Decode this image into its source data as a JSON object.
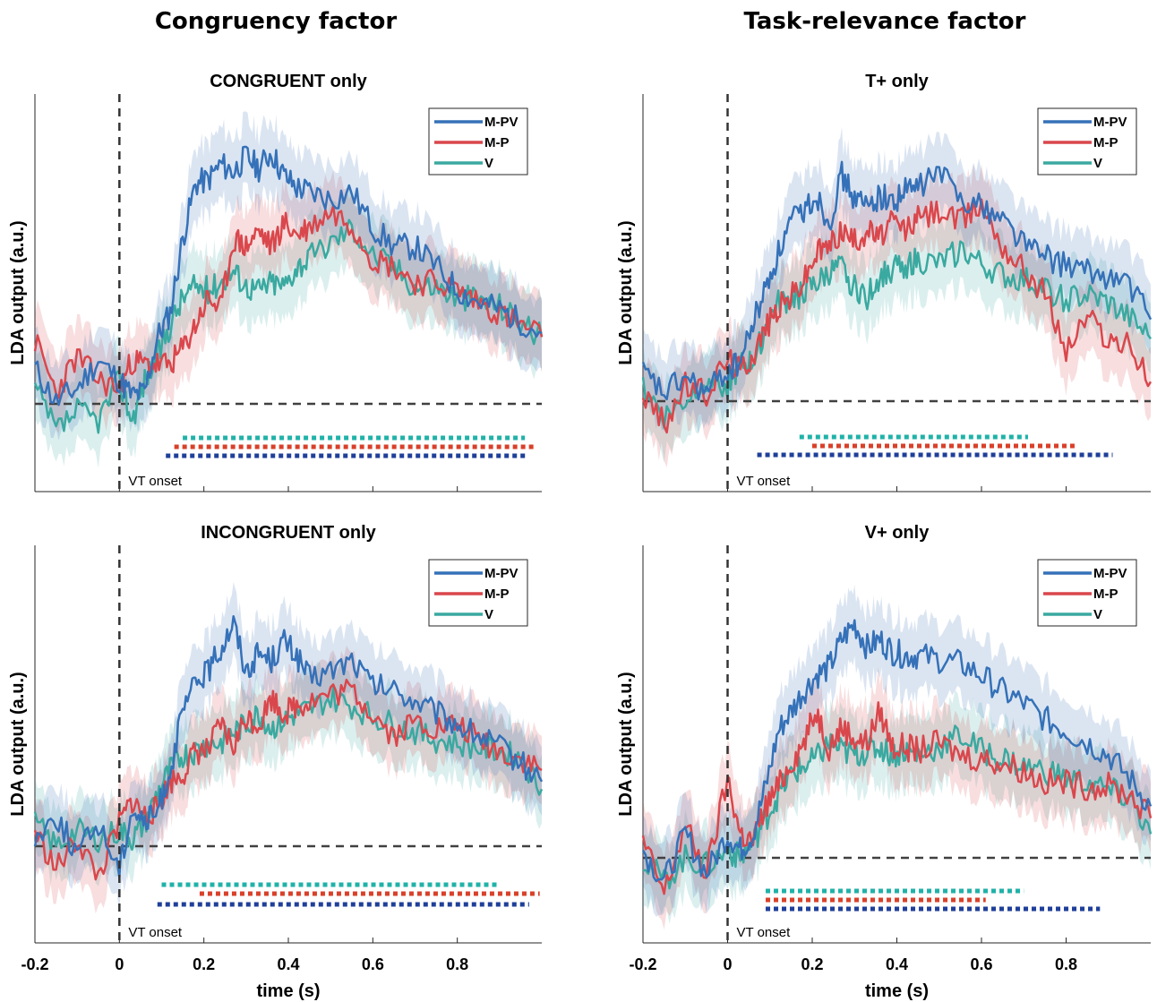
{
  "column_titles": [
    "Congruency factor",
    "Task-relevance factor"
  ],
  "colors": {
    "M-PV": "#3571b8",
    "M-P": "#d9474c",
    "V": "#3aa9a0",
    "sig_V": "#20b2a8",
    "sig_MP": "#d9402a",
    "sig_MPV": "#1f3f99",
    "baseline": "#404040"
  },
  "chart_data": [
    {
      "type": "line",
      "title": "CONGRUENT only",
      "xlabel": "",
      "ylabel": "LDA output (a.u.)",
      "xlim": [
        -0.2,
        1.0
      ],
      "xticks": [
        "-0.2",
        "0",
        "0.2",
        "0.4",
        "0.6",
        "0.8"
      ],
      "onset_label": "VT onset",
      "legend": [
        "M-PV",
        "M-P",
        "V"
      ],
      "legend_position": "top-right",
      "series": [
        {
          "name": "M-PV",
          "x": [
            -0.2,
            -0.15,
            -0.1,
            -0.05,
            0,
            0.03,
            0.06,
            0.09,
            0.12,
            0.15,
            0.18,
            0.21,
            0.24,
            0.27,
            0.3,
            0.33,
            0.36,
            0.39,
            0.42,
            0.45,
            0.5,
            0.55,
            0.6,
            0.65,
            0.7,
            0.75,
            0.8,
            0.85,
            0.9,
            0.95,
            1.0
          ],
          "y": [
            0.45,
            0.02,
            0.2,
            0.55,
            0.3,
            0.1,
            0.15,
            0.85,
            1.15,
            2.1,
            2.8,
            2.85,
            3.05,
            2.95,
            3.15,
            3.0,
            3.2,
            2.9,
            2.75,
            2.7,
            2.6,
            2.7,
            2.25,
            2.0,
            2.0,
            1.75,
            1.45,
            1.3,
            1.2,
            1.05,
            0.9
          ]
        },
        {
          "name": "M-P",
          "x": [
            -0.2,
            -0.15,
            -0.1,
            -0.05,
            0,
            0.03,
            0.06,
            0.09,
            0.12,
            0.15,
            0.18,
            0.21,
            0.24,
            0.27,
            0.3,
            0.33,
            0.36,
            0.39,
            0.42,
            0.45,
            0.5,
            0.55,
            0.6,
            0.65,
            0.7,
            0.75,
            0.8,
            0.85,
            0.9,
            0.95,
            1.0
          ],
          "y": [
            0.8,
            0.15,
            0.6,
            0.3,
            0.2,
            0.55,
            0.5,
            0.5,
            0.5,
            0.7,
            1.0,
            1.35,
            1.2,
            2.1,
            2.0,
            2.2,
            2.0,
            2.3,
            2.15,
            2.25,
            2.45,
            2.3,
            1.85,
            1.75,
            1.55,
            1.55,
            1.45,
            1.3,
            1.15,
            1.0,
            0.85
          ]
        },
        {
          "name": "V",
          "x": [
            -0.2,
            -0.15,
            -0.1,
            -0.05,
            0,
            0.03,
            0.06,
            0.09,
            0.12,
            0.15,
            0.18,
            0.21,
            0.24,
            0.27,
            0.3,
            0.33,
            0.36,
            0.39,
            0.42,
            0.45,
            0.5,
            0.55,
            0.6,
            0.65,
            0.7,
            0.75,
            0.8,
            0.85,
            0.9,
            0.95,
            1.0
          ],
          "y": [
            0.2,
            -0.35,
            -0.1,
            -0.2,
            0.3,
            -0.2,
            0.3,
            0.6,
            1.0,
            1.35,
            1.5,
            1.45,
            1.55,
            1.7,
            1.5,
            1.45,
            1.55,
            1.5,
            1.75,
            1.85,
            2.05,
            2.25,
            1.9,
            1.75,
            1.5,
            1.5,
            1.35,
            1.35,
            1.25,
            1.05,
            0.85
          ]
        }
      ],
      "significance": [
        {
          "series": "V",
          "start": 0.15,
          "end": 0.96
        },
        {
          "series": "M-P",
          "start": 0.13,
          "end": 0.985
        },
        {
          "series": "M-PV",
          "start": 0.11,
          "end": 0.965
        }
      ]
    },
    {
      "type": "line",
      "title": "T+ only",
      "xlabel": "",
      "ylabel": "LDA output (a.u.)",
      "xlim": [
        -0.2,
        1.0
      ],
      "xticks": [
        "-0.2",
        "0",
        "0.2",
        "0.4",
        "0.6",
        "0.8"
      ],
      "onset_label": "VT onset",
      "legend": [
        "M-PV",
        "M-P",
        "V"
      ],
      "legend_position": "top-right",
      "series": [
        {
          "name": "M-PV",
          "x": [
            -0.2,
            -0.15,
            -0.1,
            -0.05,
            0,
            0.03,
            0.06,
            0.09,
            0.12,
            0.15,
            0.18,
            0.21,
            0.24,
            0.27,
            0.3,
            0.33,
            0.36,
            0.39,
            0.42,
            0.45,
            0.5,
            0.55,
            0.6,
            0.65,
            0.7,
            0.75,
            0.8,
            0.85,
            0.9,
            0.95,
            1.0
          ],
          "y": [
            0.35,
            0.1,
            0.3,
            0.1,
            0.4,
            0.5,
            1.0,
            1.45,
            1.9,
            2.3,
            2.45,
            2.65,
            2.3,
            2.9,
            2.6,
            2.5,
            2.65,
            2.55,
            2.7,
            2.75,
            2.95,
            2.65,
            2.5,
            2.35,
            2.05,
            1.85,
            1.75,
            1.65,
            1.6,
            1.5,
            1.05
          ]
        },
        {
          "name": "M-P",
          "x": [
            -0.2,
            -0.15,
            -0.1,
            -0.05,
            0,
            0.03,
            0.06,
            0.09,
            0.12,
            0.15,
            0.18,
            0.21,
            0.24,
            0.27,
            0.3,
            0.33,
            0.36,
            0.39,
            0.42,
            0.45,
            0.5,
            0.55,
            0.6,
            0.65,
            0.7,
            0.75,
            0.8,
            0.85,
            0.9,
            0.95,
            1.0
          ],
          "y": [
            0.1,
            -0.3,
            0.2,
            0.1,
            0.55,
            0.4,
            0.6,
            0.95,
            1.2,
            1.35,
            1.55,
            1.9,
            2.0,
            2.2,
            2.05,
            2.2,
            2.1,
            2.3,
            2.2,
            2.35,
            2.45,
            2.3,
            2.55,
            2.0,
            1.7,
            1.4,
            0.65,
            1.1,
            0.8,
            0.7,
            0.25
          ]
        },
        {
          "name": "V",
          "x": [
            -0.2,
            -0.15,
            -0.1,
            -0.05,
            0,
            0.03,
            0.06,
            0.09,
            0.12,
            0.15,
            0.18,
            0.21,
            0.24,
            0.27,
            0.3,
            0.33,
            0.36,
            0.39,
            0.42,
            0.45,
            0.5,
            0.55,
            0.6,
            0.65,
            0.7,
            0.75,
            0.8,
            0.85,
            0.9,
            0.95,
            1.0
          ],
          "y": [
            0.2,
            -0.2,
            0.0,
            0.3,
            0.2,
            0.45,
            0.5,
            0.95,
            1.25,
            1.3,
            1.4,
            1.5,
            1.65,
            1.7,
            1.45,
            1.35,
            1.6,
            1.7,
            1.75,
            1.8,
            1.75,
            1.95,
            1.75,
            1.6,
            1.55,
            1.45,
            1.3,
            1.35,
            1.25,
            1.05,
            0.8
          ]
        }
      ],
      "significance": [
        {
          "series": "V",
          "start": 0.17,
          "end": 0.71
        },
        {
          "series": "M-P",
          "start": 0.2,
          "end": 0.82
        },
        {
          "series": "M-PV",
          "start": 0.07,
          "end": 0.91
        }
      ]
    },
    {
      "type": "line",
      "title": "INCONGRUENT only",
      "xlabel": "time (s)",
      "ylabel": "LDA output (a.u.)",
      "xlim": [
        -0.2,
        1.0
      ],
      "xticks": [
        "-0.2",
        "0",
        "0.2",
        "0.4",
        "0.6",
        "0.8"
      ],
      "onset_label": "VT onset",
      "legend": [
        "M-PV",
        "M-P",
        "V"
      ],
      "legend_position": "top-right",
      "series": [
        {
          "name": "M-PV",
          "x": [
            -0.2,
            -0.15,
            -0.1,
            -0.05,
            0,
            0.03,
            0.06,
            0.09,
            0.12,
            0.15,
            0.18,
            0.21,
            0.24,
            0.27,
            0.3,
            0.33,
            0.36,
            0.39,
            0.42,
            0.45,
            0.5,
            0.55,
            0.6,
            0.65,
            0.7,
            0.75,
            0.8,
            0.85,
            0.9,
            0.95,
            1.0
          ],
          "y": [
            0.1,
            0.4,
            -0.1,
            0.3,
            -0.3,
            0.5,
            0.3,
            0.45,
            1.0,
            1.75,
            2.15,
            2.3,
            2.6,
            2.95,
            2.3,
            2.55,
            2.45,
            2.7,
            2.5,
            2.2,
            2.3,
            2.45,
            2.1,
            2.05,
            1.9,
            1.75,
            1.6,
            1.45,
            1.3,
            1.1,
            0.85
          ]
        },
        {
          "name": "M-P",
          "x": [
            -0.2,
            -0.15,
            -0.1,
            -0.05,
            0,
            0.03,
            0.06,
            0.09,
            0.12,
            0.15,
            0.18,
            0.21,
            0.24,
            0.27,
            0.3,
            0.33,
            0.36,
            0.39,
            0.42,
            0.45,
            0.5,
            0.55,
            0.6,
            0.65,
            0.7,
            0.75,
            0.8,
            0.85,
            0.9,
            0.95,
            1.0
          ],
          "y": [
            0.2,
            -0.3,
            0.1,
            -0.4,
            0.3,
            0.6,
            0.4,
            0.5,
            0.85,
            0.95,
            1.25,
            1.25,
            1.6,
            1.3,
            1.7,
            1.6,
            1.95,
            1.75,
            1.85,
            1.9,
            2.0,
            2.05,
            1.75,
            1.45,
            1.65,
            1.55,
            1.6,
            1.4,
            1.25,
            1.15,
            1.0
          ]
        },
        {
          "name": "V",
          "x": [
            -0.2,
            -0.15,
            -0.1,
            -0.05,
            0,
            0.03,
            0.06,
            0.09,
            0.12,
            0.15,
            0.18,
            0.21,
            0.24,
            0.27,
            0.3,
            0.33,
            0.36,
            0.39,
            0.42,
            0.45,
            0.5,
            0.55,
            0.6,
            0.65,
            0.7,
            0.75,
            0.8,
            0.85,
            0.9,
            0.95,
            1.0
          ],
          "y": [
            0.3,
            0.0,
            0.2,
            0.1,
            0.2,
            0.1,
            0.3,
            0.7,
            1.0,
            1.2,
            1.25,
            1.35,
            1.35,
            1.5,
            1.6,
            1.75,
            1.55,
            1.65,
            1.75,
            1.8,
            1.95,
            1.85,
            1.7,
            1.6,
            1.5,
            1.4,
            1.35,
            1.3,
            1.25,
            1.15,
            0.75
          ]
        }
      ],
      "significance": [
        {
          "series": "V",
          "start": 0.1,
          "end": 0.9
        },
        {
          "series": "M-P",
          "start": 0.19,
          "end": 0.995
        },
        {
          "series": "M-PV",
          "start": 0.09,
          "end": 0.97
        }
      ]
    },
    {
      "type": "line",
      "title": "V+ only",
      "xlabel": "time (s)",
      "ylabel": "LDA output (a.u.)",
      "xlim": [
        -0.2,
        1.0
      ],
      "xticks": [
        "-0.2",
        "0",
        "0.2",
        "0.4",
        "0.6",
        "0.8"
      ],
      "onset_label": "VT onset",
      "legend": [
        "M-PV",
        "M-P",
        "V"
      ],
      "legend_position": "top-right",
      "series": [
        {
          "name": "M-PV",
          "x": [
            -0.2,
            -0.15,
            -0.1,
            -0.05,
            0,
            0.03,
            0.06,
            0.09,
            0.12,
            0.15,
            0.18,
            0.21,
            0.24,
            0.27,
            0.3,
            0.33,
            0.36,
            0.39,
            0.42,
            0.45,
            0.5,
            0.55,
            0.6,
            0.65,
            0.7,
            0.75,
            0.8,
            0.85,
            0.9,
            0.95,
            1.0
          ],
          "y": [
            0.1,
            -0.3,
            0.3,
            -0.2,
            0.3,
            0.1,
            0.3,
            0.9,
            1.6,
            1.85,
            2.1,
            2.3,
            2.4,
            2.75,
            2.95,
            2.65,
            2.75,
            2.6,
            2.55,
            2.55,
            2.5,
            2.45,
            2.3,
            2.1,
            1.95,
            1.75,
            1.6,
            1.45,
            1.3,
            1.0,
            0.65
          ]
        },
        {
          "name": "M-P",
          "x": [
            -0.2,
            -0.15,
            -0.1,
            -0.05,
            0,
            0.03,
            0.06,
            0.09,
            0.12,
            0.15,
            0.18,
            0.21,
            0.24,
            0.27,
            0.3,
            0.33,
            0.36,
            0.39,
            0.42,
            0.45,
            0.5,
            0.55,
            0.6,
            0.65,
            0.7,
            0.75,
            0.8,
            0.85,
            0.9,
            0.95,
            1.0
          ],
          "y": [
            0.2,
            -0.45,
            0.4,
            -0.2,
            1.0,
            0.3,
            0.2,
            0.65,
            0.9,
            1.2,
            1.45,
            1.85,
            1.4,
            1.65,
            1.5,
            1.45,
            1.85,
            1.4,
            1.4,
            1.35,
            1.45,
            1.3,
            1.25,
            1.2,
            1.1,
            0.95,
            0.95,
            0.9,
            0.9,
            0.8,
            0.5
          ]
        },
        {
          "name": "V",
          "x": [
            -0.2,
            -0.15,
            -0.1,
            -0.05,
            0,
            0.03,
            0.06,
            0.09,
            0.12,
            0.15,
            0.18,
            0.21,
            0.24,
            0.27,
            0.3,
            0.33,
            0.36,
            0.39,
            0.42,
            0.45,
            0.5,
            0.55,
            0.6,
            0.65,
            0.7,
            0.75,
            0.8,
            0.85,
            0.9,
            0.95,
            1.0
          ],
          "y": [
            0.0,
            -0.3,
            0.0,
            -0.1,
            0.1,
            0.0,
            0.2,
            0.5,
            0.8,
            1.05,
            1.15,
            1.25,
            1.45,
            1.35,
            1.3,
            1.35,
            1.4,
            1.3,
            1.35,
            1.3,
            1.4,
            1.55,
            1.35,
            1.25,
            1.15,
            1.1,
            1.0,
            0.95,
            0.85,
            0.75,
            0.3
          ]
        }
      ],
      "significance": [
        {
          "series": "V",
          "start": 0.09,
          "end": 0.7
        },
        {
          "series": "M-P",
          "start": 0.09,
          "end": 0.61
        },
        {
          "series": "M-PV",
          "start": 0.09,
          "end": 0.88
        }
      ]
    }
  ]
}
